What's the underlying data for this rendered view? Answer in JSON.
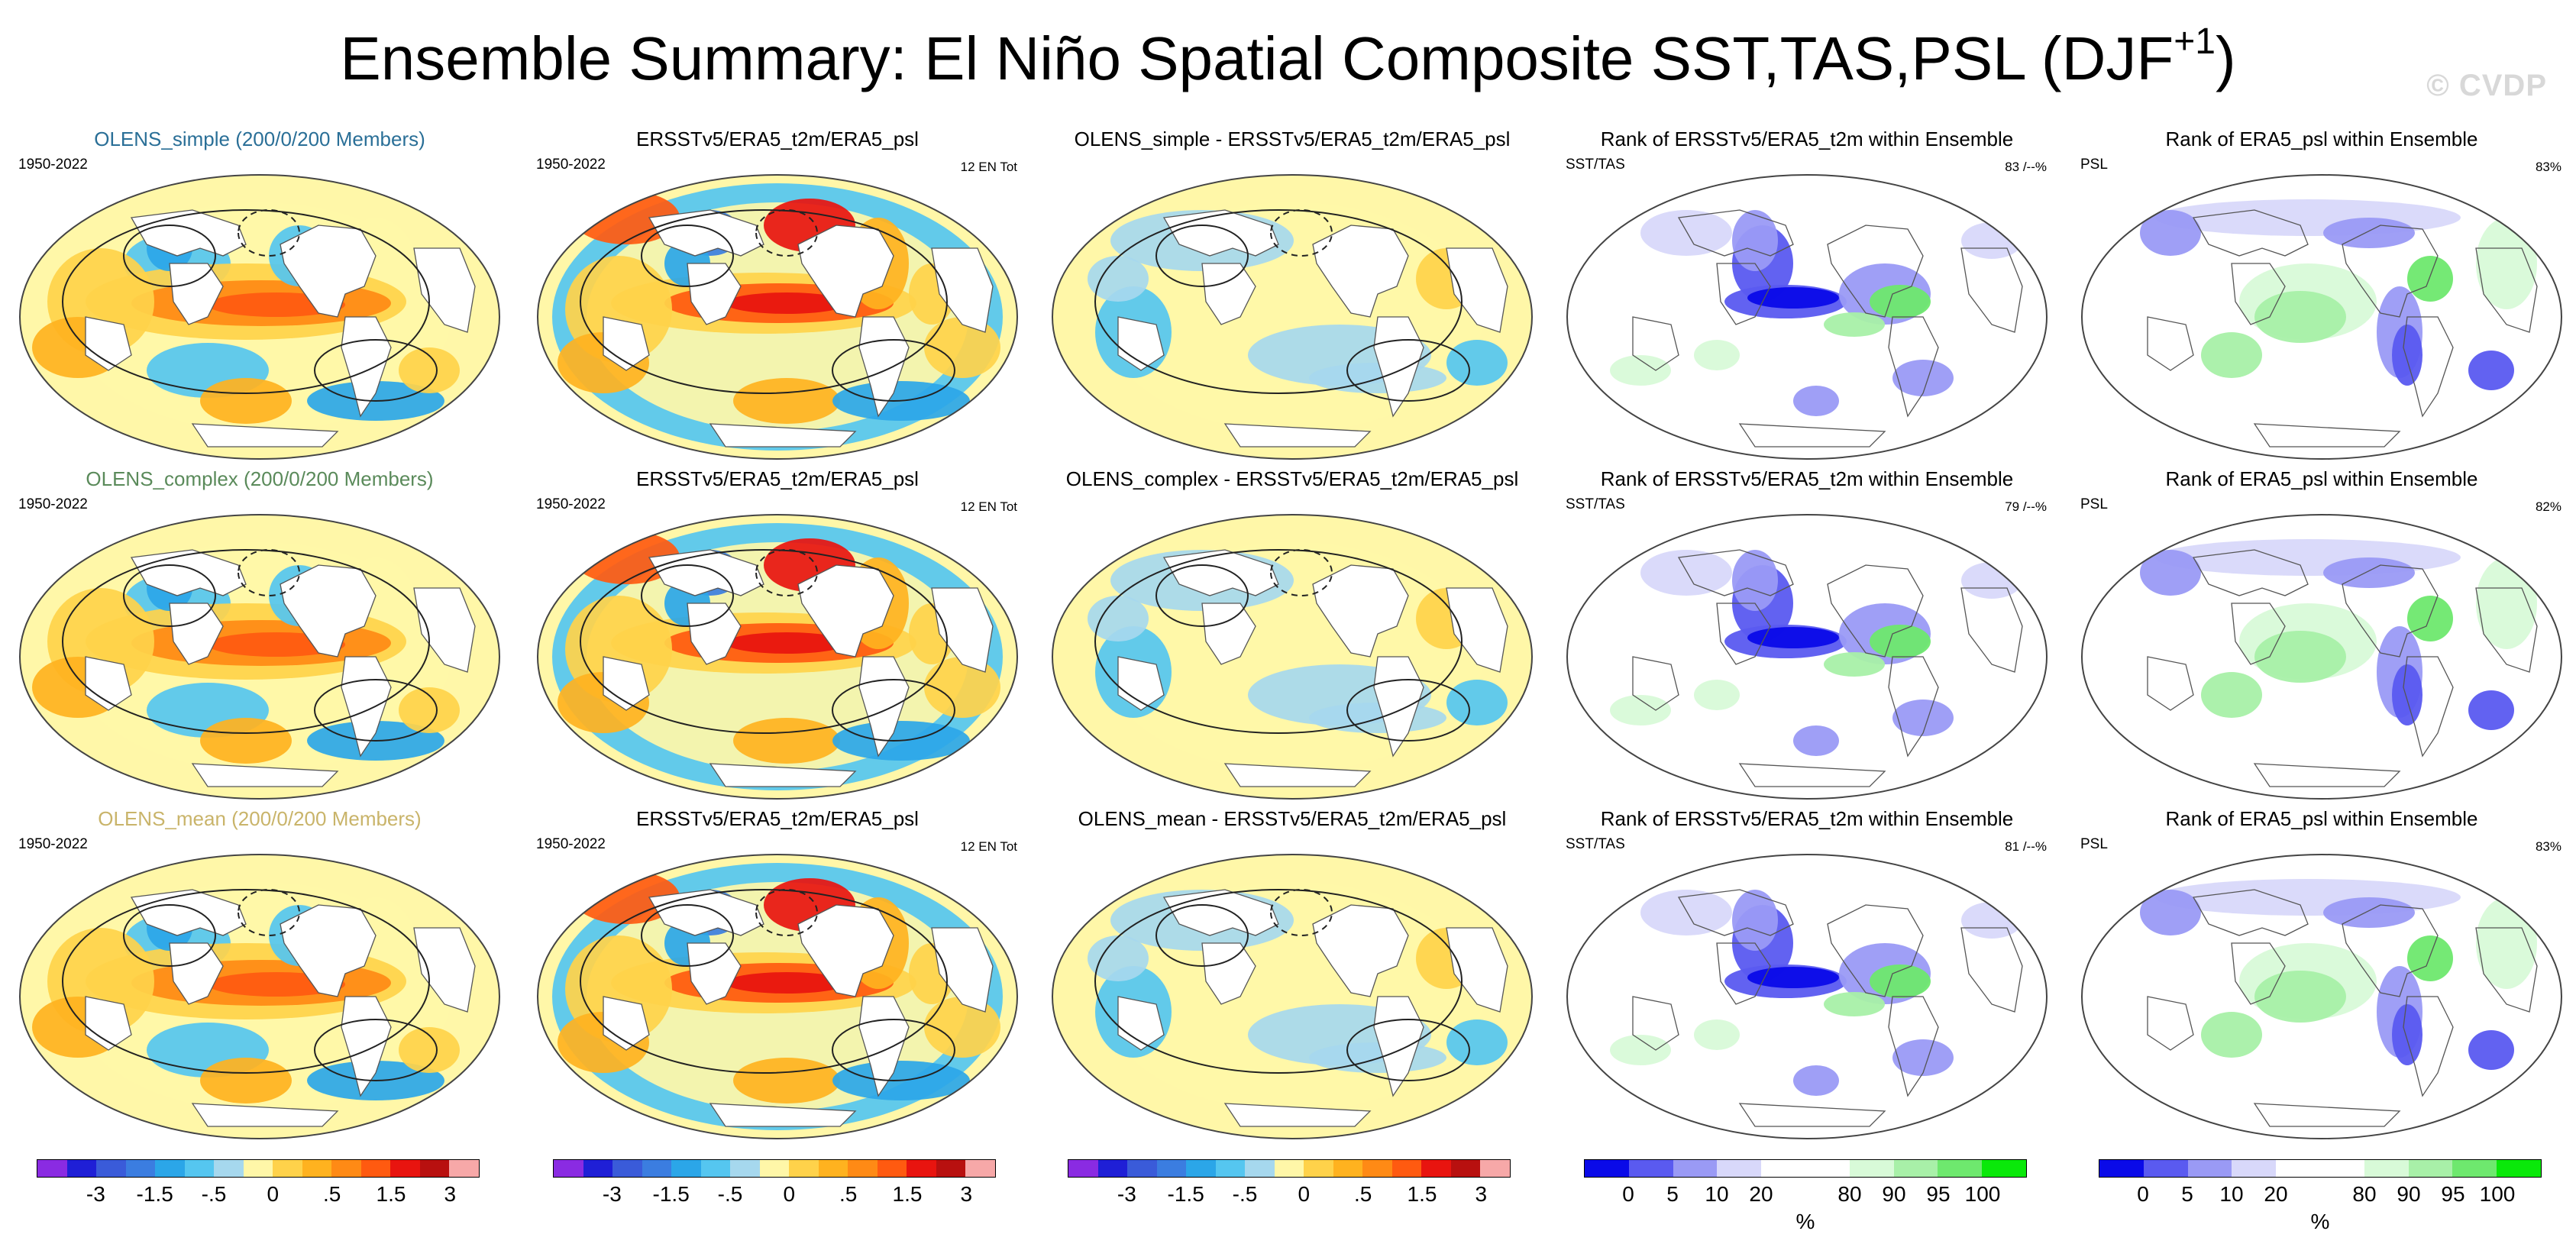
{
  "title": "Ensemble Summary: El Niño Spatial Composite SST,TAS,PSL (DJF",
  "title_sup": "+1",
  "title_close": ")",
  "watermark": "© CVDP",
  "chart_data": {
    "type": "heatmap",
    "layout": "3x5 panel grid of global map composites",
    "rows": [
      {
        "panels": [
          {
            "title": "OLENS_simple (200/0/200 Members)",
            "title_color": "#2a6f97",
            "left": "1950-2022",
            "right": "",
            "kind": "composite"
          },
          {
            "title": "ERSSTv5/ERA5_t2m/ERA5_psl",
            "title_color": "#000000",
            "left": "1950-2022",
            "right": "12 EN Tot",
            "kind": "observed"
          },
          {
            "title": "OLENS_simple - ERSSTv5/ERA5_t2m/ERA5_psl",
            "title_color": "#000000",
            "left": "",
            "right": "",
            "kind": "difference"
          },
          {
            "title": "Rank of ERSSTv5/ERA5_t2m within Ensemble",
            "title_color": "#000000",
            "left": "SST/TAS",
            "right": "83 /--%",
            "kind": "rank"
          },
          {
            "title": "Rank of ERA5_psl within Ensemble",
            "title_color": "#000000",
            "left": "PSL",
            "right": "83%",
            "kind": "rankpsl"
          }
        ]
      },
      {
        "panels": [
          {
            "title": "OLENS_complex (200/0/200 Members)",
            "title_color": "#5a8a5a",
            "left": "1950-2022",
            "right": "",
            "kind": "composite"
          },
          {
            "title": "ERSSTv5/ERA5_t2m/ERA5_psl",
            "title_color": "#000000",
            "left": "1950-2022",
            "right": "12 EN Tot",
            "kind": "observed"
          },
          {
            "title": "OLENS_complex - ERSSTv5/ERA5_t2m/ERA5_psl",
            "title_color": "#000000",
            "left": "",
            "right": "",
            "kind": "difference"
          },
          {
            "title": "Rank of ERSSTv5/ERA5_t2m within Ensemble",
            "title_color": "#000000",
            "left": "SST/TAS",
            "right": "79 /--%",
            "kind": "rank"
          },
          {
            "title": "Rank of ERA5_psl within Ensemble",
            "title_color": "#000000",
            "left": "PSL",
            "right": "82%",
            "kind": "rankpsl"
          }
        ]
      },
      {
        "panels": [
          {
            "title": "OLENS_mean (200/0/200 Members)",
            "title_color": "#c9b46a",
            "left": "1950-2022",
            "right": "",
            "kind": "composite"
          },
          {
            "title": "ERSSTv5/ERA5_t2m/ERA5_psl",
            "title_color": "#000000",
            "left": "1950-2022",
            "right": "12 EN Tot",
            "kind": "observed"
          },
          {
            "title": "OLENS_mean - ERSSTv5/ERA5_t2m/ERA5_psl",
            "title_color": "#000000",
            "left": "",
            "right": "",
            "kind": "difference"
          },
          {
            "title": "Rank of ERSSTv5/ERA5_t2m within Ensemble",
            "title_color": "#000000",
            "left": "SST/TAS",
            "right": "81 /--%",
            "kind": "rank"
          },
          {
            "title": "Rank of ERA5_psl within Ensemble",
            "title_color": "#000000",
            "left": "PSL",
            "right": "83%",
            "kind": "rankpsl"
          }
        ]
      }
    ],
    "colorbars": [
      {
        "kind": "anomaly",
        "colors": [
          "#8a2be2",
          "#1f1fd6",
          "#3a5bd9",
          "#3b7de0",
          "#2ba6e8",
          "#55c6f0",
          "#a6d8ee",
          "#fff7a8",
          "#ffd24a",
          "#ffb21f",
          "#ff8a15",
          "#ff5a10",
          "#e8140f",
          "#b8100f",
          "#f7a8a8"
        ],
        "ticks": [
          "-3",
          "-1.5",
          "-.5",
          "0",
          ".5",
          "1.5",
          "3"
        ],
        "unit": ""
      },
      {
        "kind": "anomaly",
        "colors": [
          "#8a2be2",
          "#1f1fd6",
          "#3a5bd9",
          "#3b7de0",
          "#2ba6e8",
          "#55c6f0",
          "#a6d8ee",
          "#fff7a8",
          "#ffd24a",
          "#ffb21f",
          "#ff8a15",
          "#ff5a10",
          "#e8140f",
          "#b8100f",
          "#f7a8a8"
        ],
        "ticks": [
          "-3",
          "-1.5",
          "-.5",
          "0",
          ".5",
          "1.5",
          "3"
        ],
        "unit": ""
      },
      {
        "kind": "anomaly",
        "colors": [
          "#8a2be2",
          "#1f1fd6",
          "#3a5bd9",
          "#3b7de0",
          "#2ba6e8",
          "#55c6f0",
          "#a6d8ee",
          "#fff7a8",
          "#ffd24a",
          "#ffb21f",
          "#ff8a15",
          "#ff5a10",
          "#e8140f",
          "#b8100f",
          "#f7a8a8"
        ],
        "ticks": [
          "-3",
          "-1.5",
          "-.5",
          "0",
          ".5",
          "1.5",
          "3"
        ],
        "unit": ""
      },
      {
        "kind": "rank",
        "colors": [
          "#0a0ae8",
          "#5a5af0",
          "#9a9af5",
          "#d8d8fa",
          "#ffffff",
          "#ffffff",
          "#d8fad8",
          "#a8f0a8",
          "#6ee86e",
          "#0ae80a"
        ],
        "ticks": [
          "0",
          "5",
          "10",
          "20",
          "80",
          "90",
          "95",
          "100"
        ],
        "unit": "%"
      },
      {
        "kind": "rank",
        "colors": [
          "#0a0ae8",
          "#5a5af0",
          "#9a9af5",
          "#d8d8fa",
          "#ffffff",
          "#ffffff",
          "#d8fad8",
          "#a8f0a8",
          "#6ee86e",
          "#0ae80a"
        ],
        "ticks": [
          "0",
          "5",
          "10",
          "20",
          "80",
          "90",
          "95",
          "100"
        ],
        "unit": "%"
      }
    ]
  }
}
